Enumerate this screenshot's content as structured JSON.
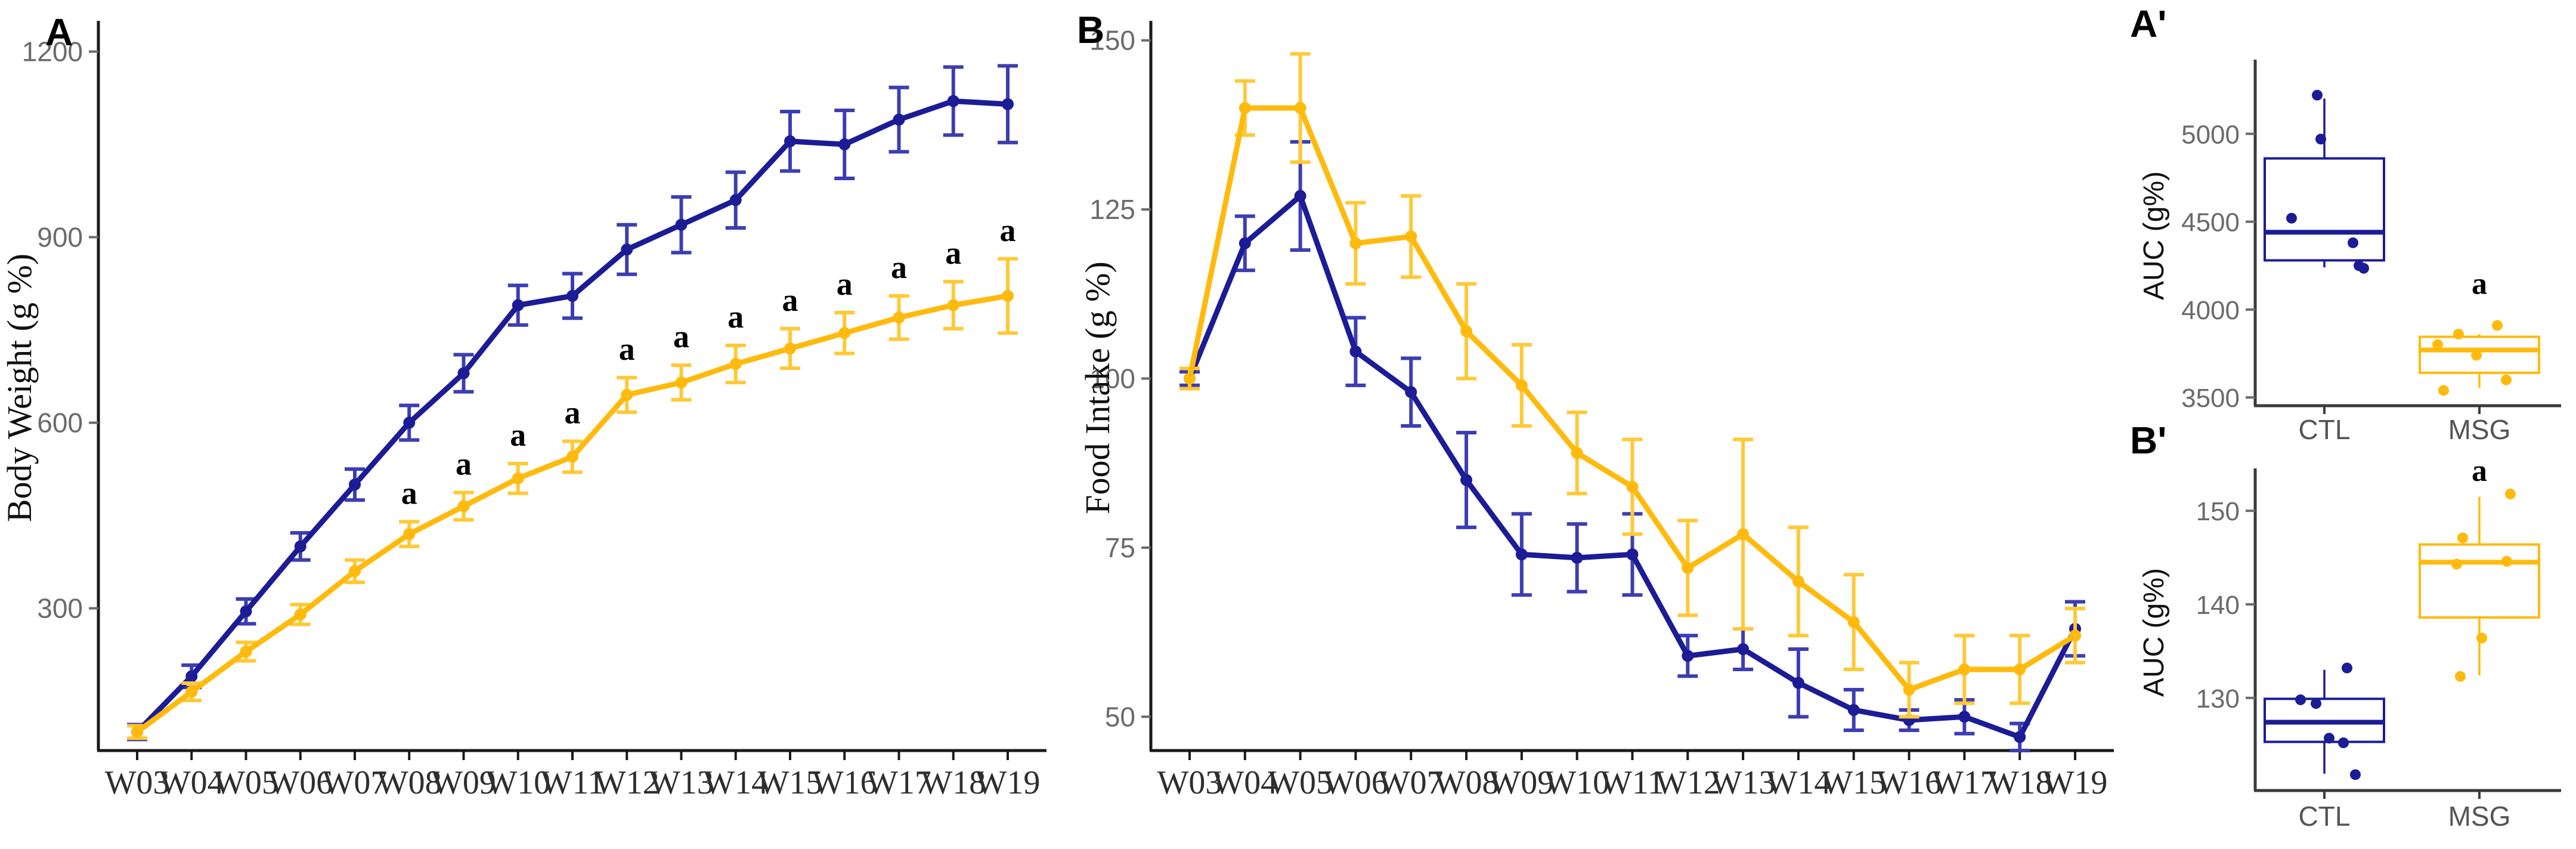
{
  "figure": {
    "background": "#ffffff"
  },
  "colors": {
    "ctl_blue": "#1c1c96",
    "ctl_blue_err": "#3d3db2",
    "msg_yellow": "#ffba0d",
    "msg_yellow_err": "#ffc937",
    "axis_dark": "#1a1a1a",
    "axis_gray": "#3a3a3a",
    "tick_label_gray": "#6b6b6b",
    "x_label_dark": "#2e2e2e",
    "cat_label_gray": "#555555",
    "annotation_black": "#000000"
  },
  "chart_data": [
    {
      "id": "A",
      "type": "line",
      "panel_label": "A",
      "ylabel": "Body Weight (g %)",
      "categories": [
        "W03",
        "W04",
        "W05",
        "W06",
        "W07",
        "W08",
        "W09",
        "W10",
        "W11",
        "W12",
        "W13",
        "W14",
        "W15",
        "W16",
        "W17",
        "W18",
        "W19"
      ],
      "yticks": [
        300,
        600,
        900,
        1200
      ],
      "ylim": [
        70,
        1240
      ],
      "grid": false,
      "legend": "none",
      "series": [
        {
          "name": "CTL",
          "color": "ctl_blue",
          "err_color": "ctl_blue_err",
          "values": [
            100,
            190,
            295,
            400,
            500,
            600,
            680,
            790,
            805,
            880,
            920,
            960,
            1055,
            1050,
            1090,
            1120,
            1115
          ],
          "errors": [
            12,
            18,
            20,
            22,
            25,
            28,
            30,
            32,
            36,
            40,
            45,
            45,
            48,
            55,
            52,
            55,
            62
          ]
        },
        {
          "name": "MSG",
          "color": "msg_yellow",
          "err_color": "msg_yellow_err",
          "values": [
            100,
            165,
            230,
            290,
            360,
            420,
            465,
            510,
            545,
            645,
            665,
            695,
            720,
            745,
            770,
            790,
            805
          ],
          "errors": [
            10,
            14,
            15,
            16,
            18,
            20,
            22,
            24,
            25,
            28,
            28,
            30,
            32,
            33,
            35,
            38,
            60
          ],
          "annotations": {
            "label": "a",
            "indices": [
              5,
              6,
              7,
              8,
              9,
              10,
              11,
              12,
              13,
              14,
              15,
              16
            ]
          }
        }
      ]
    },
    {
      "id": "B",
      "type": "line",
      "panel_label": "B",
      "ylabel": "Food Intake (g %)",
      "categories": [
        "W03",
        "W04",
        "W05",
        "W06",
        "W07",
        "W08",
        "W09",
        "W10",
        "W11",
        "W12",
        "W13",
        "W14",
        "W15",
        "W16",
        "W17",
        "W18",
        "W19"
      ],
      "yticks": [
        50,
        75,
        100,
        125,
        150
      ],
      "ylim": [
        45,
        152
      ],
      "grid": false,
      "legend": "none",
      "series": [
        {
          "name": "CTL",
          "color": "ctl_blue",
          "err_color": "ctl_blue_err",
          "values": [
            100,
            120,
            127,
            104,
            98,
            85,
            74,
            73.5,
            74,
            59,
            60,
            55,
            51,
            49.5,
            50,
            47,
            63
          ],
          "errors": [
            1,
            4,
            8,
            5,
            5,
            7,
            6,
            5,
            6,
            3,
            3,
            5,
            3,
            1.5,
            2.5,
            2,
            4
          ]
        },
        {
          "name": "MSG",
          "color": "msg_yellow",
          "err_color": "msg_yellow_err",
          "values": [
            100,
            140,
            140,
            120,
            121,
            107,
            99,
            89,
            84,
            72,
            77,
            70,
            64,
            54,
            57,
            57,
            62
          ],
          "errors": [
            1.5,
            4,
            8,
            6,
            6,
            7,
            6,
            6,
            7,
            7,
            14,
            8,
            7,
            4,
            5,
            5,
            4
          ]
        }
      ]
    },
    {
      "id": "A_prime",
      "type": "box",
      "panel_label": "A'",
      "ylabel": "AUC (g%)",
      "categories": [
        "CTL",
        "MSG"
      ],
      "yticks": [
        3500,
        4000,
        4500,
        5000
      ],
      "ylim": [
        3453,
        5388
      ],
      "grid": false,
      "boxes": [
        {
          "name": "CTL",
          "color": "ctl_blue",
          "q1": 4280,
          "median": 4440,
          "q3": 4860,
          "whisker_low": 4240,
          "whisker_high": 5200,
          "points": [
            5220,
            4970,
            4520,
            4380,
            4250,
            4235
          ],
          "jitter": [
            -12,
            -6,
            -55,
            48,
            58,
            66
          ]
        },
        {
          "name": "MSG",
          "color": "msg_yellow",
          "q1": 3640,
          "median": 3770,
          "q3": 3845,
          "whisker_low": 3555,
          "whisker_high": 3860,
          "points": [
            3910,
            3860,
            3800,
            3740,
            3600,
            3540
          ],
          "jitter": [
            30,
            -35,
            -70,
            -5,
            45,
            -60
          ],
          "annotation": {
            "label": "a",
            "value": 4090
          }
        }
      ]
    },
    {
      "id": "B_prime",
      "type": "box",
      "panel_label": "B'",
      "ylabel": "AUC (g%)",
      "categories": [
        "CTL",
        "MSG"
      ],
      "yticks": [
        130,
        140,
        150
      ],
      "ylim": [
        120.1,
        153.9
      ],
      "grid": false,
      "boxes": [
        {
          "name": "CTL",
          "color": "ctl_blue",
          "q1": 125.3,
          "median": 127.4,
          "q3": 129.9,
          "whisker_low": 121.9,
          "whisker_high": 133,
          "points": [
            133.2,
            129.8,
            129.4,
            125.7,
            125.2,
            121.8
          ],
          "jitter": [
            38,
            -40,
            -14,
            8,
            32,
            52
          ]
        },
        {
          "name": "MSG",
          "color": "msg_yellow",
          "q1": 138.6,
          "median": 144.5,
          "q3": 146.4,
          "whisker_low": 132.4,
          "whisker_high": 151.5,
          "points": [
            151.8,
            147.1,
            144.6,
            144.3,
            136.4,
            132.3
          ],
          "jitter": [
            52,
            -28,
            46,
            -38,
            4,
            -32
          ],
          "annotation": {
            "label": "a",
            "value": 153.2
          }
        }
      ]
    }
  ]
}
